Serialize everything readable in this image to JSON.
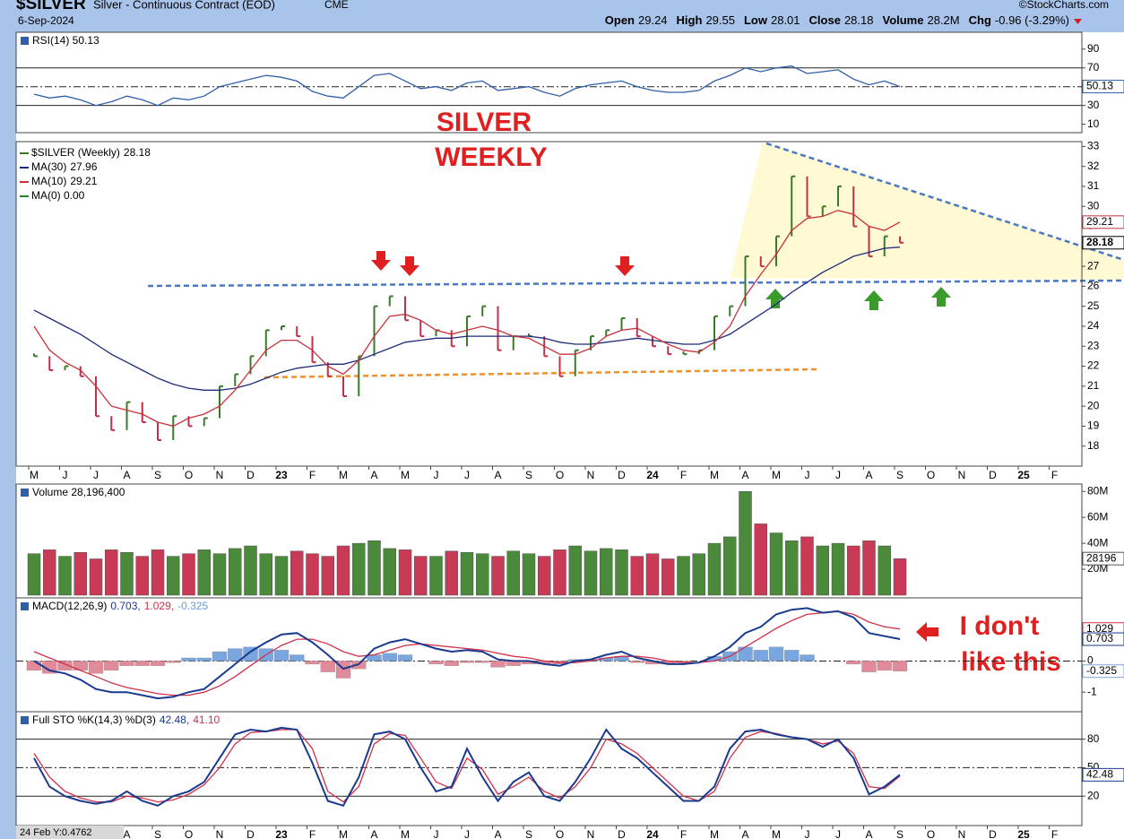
{
  "header": {
    "symbol": "$SILVER",
    "name": "Silver - Continuous Contract (EOD)",
    "exchange": "CME",
    "source": "©StockCharts.com",
    "date": "6-Sep-2024",
    "quote": [
      {
        "label": "Open",
        "value": 29.24
      },
      {
        "label": "High",
        "value": 29.55
      },
      {
        "label": "Low",
        "value": 28.01
      },
      {
        "label": "Close",
        "value": 28.18
      },
      {
        "label": "Volume",
        "value": "28.2M"
      },
      {
        "label": "Chg",
        "value": "-0.96 (-3.29%)"
      }
    ]
  },
  "annotations": {
    "title": [
      "SILVER",
      "WEEKLY"
    ],
    "comment": [
      "I don't",
      "like this"
    ]
  },
  "status": "24 Feb Y:0.4762",
  "chart_data": [
    {
      "type": "line",
      "title_parts": [
        {
          "text": "RSI(14) 50.13",
          "color": "#000000"
        }
      ],
      "ylim": [
        2,
        107
      ],
      "yticks": [
        10,
        30,
        50,
        70,
        90
      ],
      "reference_lines": [
        {
          "value": 70,
          "dash": false
        },
        {
          "value": 50,
          "dash": true
        },
        {
          "value": 30,
          "dash": false
        }
      ],
      "series": [
        {
          "color": "#2f5fa8",
          "style": "line",
          "tag": true,
          "values": [
            42,
            38,
            40,
            36,
            30,
            34,
            40,
            36,
            30,
            38,
            36,
            40,
            50,
            54,
            58,
            62,
            60,
            56,
            45,
            40,
            38,
            50,
            62,
            64,
            56,
            48,
            50,
            46,
            54,
            56,
            46,
            48,
            50,
            44,
            40,
            48,
            52,
            54,
            56,
            50,
            46,
            44,
            44,
            46,
            56,
            62,
            70,
            66,
            70,
            72,
            64,
            66,
            68,
            58,
            52,
            56,
            50.13,
            null,
            null,
            null,
            null,
            null,
            null,
            null,
            null,
            null,
            null,
            null
          ]
        }
      ]
    },
    {
      "type": "line",
      "categories": [
        "M",
        null,
        "J",
        null,
        "J",
        null,
        "A",
        null,
        "S",
        null,
        "O",
        null,
        "N",
        null,
        "D",
        null,
        "23",
        null,
        "F",
        null,
        "M",
        null,
        "A",
        null,
        "M",
        null,
        "J",
        null,
        "J",
        null,
        "A",
        null,
        "S",
        null,
        "O",
        null,
        "N",
        null,
        "D",
        null,
        "24",
        null,
        "F",
        null,
        "M",
        null,
        "A",
        null,
        "M",
        null,
        "J",
        null,
        "J",
        null,
        "A",
        null,
        "S",
        null,
        "O",
        null,
        "N",
        null,
        "D",
        null,
        "25",
        null,
        "F",
        null
      ],
      "ylim": [
        17,
        33.15
      ],
      "yticks": [
        18,
        19,
        20,
        21,
        22,
        23,
        24,
        25,
        26,
        27,
        28,
        29,
        30,
        31,
        32,
        33
      ],
      "series": [
        {
          "name": "$SILVER (Weekly)",
          "color": "#000000",
          "up_color": "#3a7a2a",
          "down_color": "#c0304a",
          "style": "bars",
          "tag": true,
          "values": [
            22.5,
            21.8,
            22.0,
            21.5,
            19.5,
            18.8,
            20.2,
            19.2,
            18.3,
            19.5,
            19.0,
            19.4,
            21.0,
            21.6,
            22.5,
            23.8,
            24.0,
            23.5,
            22.2,
            21.5,
            20.5,
            22.5,
            25.0,
            25.5,
            24.3,
            23.5,
            23.8,
            23.0,
            24.5,
            25.0,
            22.8,
            23.5,
            23.5,
            22.5,
            21.5,
            22.8,
            23.5,
            23.8,
            24.4,
            23.5,
            23.0,
            22.6,
            22.6,
            22.8,
            24.5,
            25.0,
            27.5,
            27.0,
            28.5,
            31.5,
            29.5,
            30.0,
            31.0,
            29.0,
            27.5,
            28.5,
            28.18,
            null,
            null,
            null,
            null,
            null,
            null,
            null,
            null,
            null,
            null,
            null
          ]
        },
        {
          "name": "MA(30)",
          "color": "#1f2a7a",
          "style": "line",
          "tag": false,
          "values": [
            24.8,
            24.4,
            24.0,
            23.6,
            23.1,
            22.6,
            22.2,
            21.8,
            21.4,
            21.1,
            20.9,
            20.8,
            20.8,
            20.9,
            21.1,
            21.4,
            21.7,
            21.9,
            22.0,
            22.1,
            22.1,
            22.3,
            22.6,
            22.9,
            23.2,
            23.3,
            23.4,
            23.4,
            23.5,
            23.5,
            23.5,
            23.5,
            23.5,
            23.4,
            23.2,
            23.1,
            23.1,
            23.2,
            23.3,
            23.4,
            23.3,
            23.2,
            23.1,
            23.1,
            23.3,
            23.6,
            24.1,
            24.6,
            25.1,
            25.7,
            26.2,
            26.7,
            27.1,
            27.5,
            27.7,
            27.9,
            27.96,
            null,
            null,
            null,
            null,
            null,
            null,
            null,
            null,
            null,
            null,
            null
          ]
        },
        {
          "name": "MA(10)",
          "color": "#c8323c",
          "style": "line",
          "tag": true,
          "values": [
            24.0,
            22.8,
            22.2,
            21.8,
            21.0,
            20.0,
            19.8,
            19.6,
            19.2,
            19.0,
            19.4,
            19.6,
            20.0,
            20.8,
            21.8,
            22.8,
            23.3,
            23.3,
            22.8,
            22.0,
            21.6,
            22.3,
            23.5,
            24.5,
            24.6,
            24.3,
            23.8,
            23.6,
            23.8,
            24.0,
            23.8,
            23.5,
            23.4,
            23.0,
            22.6,
            22.6,
            22.9,
            23.5,
            23.8,
            23.9,
            23.5,
            23.1,
            22.8,
            22.7,
            23.2,
            24.0,
            25.5,
            26.6,
            27.6,
            28.8,
            29.4,
            29.5,
            29.8,
            29.6,
            29.0,
            28.8,
            29.21,
            null,
            null,
            null,
            null,
            null,
            null,
            null,
            null,
            null,
            null,
            null
          ]
        }
      ],
      "extra_legend": {
        "text": "MA(0) 0.00",
        "color": "#2e7d32"
      }
    },
    {
      "type": "bar",
      "title_parts": [
        {
          "text": "Volume 28,196,400",
          "color": "#000000"
        }
      ],
      "ylim": [
        0,
        85
      ],
      "yticks": [
        {
          "value": 20,
          "label": "20M"
        },
        {
          "value": 40,
          "label": "40M"
        },
        {
          "value": 60,
          "label": "60M"
        },
        {
          "value": 80,
          "label": "80M"
        }
      ],
      "tag_label": "28196",
      "series": [
        {
          "color": "#000000",
          "up_color": "#4a8a3a",
          "down_color": "#c83a56",
          "style": "volume",
          "values": [
            32,
            35,
            30,
            33,
            28,
            35,
            33,
            30,
            35,
            30,
            32,
            35,
            32,
            36,
            38,
            32,
            30,
            34,
            32,
            30,
            38,
            40,
            42,
            36,
            35,
            30,
            30,
            34,
            33,
            32,
            30,
            34,
            32,
            30,
            35,
            38,
            34,
            36,
            35,
            30,
            32,
            28,
            30,
            32,
            40,
            45,
            80,
            55,
            48,
            42,
            45,
            38,
            40,
            38,
            42,
            38,
            28.1964,
            null,
            null,
            null,
            null,
            null,
            null,
            null,
            null,
            null,
            null,
            null
          ]
        }
      ]
    },
    {
      "type": "line",
      "title_parts": [
        {
          "text": "MACD(12,26,9)",
          "color": "#000000"
        },
        {
          "text": "0.703,",
          "color": "#1a3a8f"
        },
        {
          "text": "1.029,",
          "color": "#d0304a"
        },
        {
          "text": "-0.325",
          "color": "#6a9ae0"
        }
      ],
      "ylim": [
        -1.6,
        2
      ],
      "yticks": [
        -1,
        0,
        1
      ],
      "reference_lines": [
        {
          "value": 0,
          "dash": true
        }
      ],
      "series": [
        {
          "color": "#7aa6e0",
          "negative_color": "#e08a9a",
          "style": "histogram",
          "tag": true,
          "values": [
            -0.3,
            -0.4,
            -0.3,
            -0.3,
            -0.4,
            -0.3,
            -0.15,
            -0.15,
            -0.15,
            -0.05,
            0.1,
            0.1,
            0.3,
            0.4,
            0.45,
            0.4,
            0.35,
            0.2,
            -0.1,
            -0.35,
            -0.55,
            -0.25,
            0.2,
            0.25,
            0.2,
            0.0,
            -0.1,
            -0.15,
            -0.05,
            -0.05,
            -0.2,
            -0.15,
            -0.1,
            -0.1,
            -0.1,
            0.05,
            0.05,
            0.1,
            0.15,
            -0.05,
            -0.1,
            -0.1,
            -0.05,
            0.0,
            0.15,
            0.3,
            0.45,
            0.35,
            0.45,
            0.35,
            0.2,
            0.0,
            0.0,
            -0.1,
            -0.35,
            -0.3,
            -0.325,
            null,
            null,
            null,
            null,
            null,
            null,
            null,
            null,
            null,
            null,
            null
          ]
        },
        {
          "color": "#d0304a",
          "style": "line",
          "tag": true,
          "values": [
            0.3,
            0.1,
            -0.1,
            -0.3,
            -0.5,
            -0.7,
            -0.85,
            -0.95,
            -1.05,
            -1.1,
            -1.1,
            -1.0,
            -0.8,
            -0.5,
            -0.15,
            0.2,
            0.5,
            0.7,
            0.7,
            0.55,
            0.3,
            0.15,
            0.2,
            0.35,
            0.5,
            0.55,
            0.5,
            0.45,
            0.4,
            0.35,
            0.25,
            0.15,
            0.1,
            0.0,
            -0.05,
            -0.05,
            0.0,
            0.1,
            0.15,
            0.15,
            0.1,
            0.0,
            -0.05,
            -0.05,
            0.0,
            0.15,
            0.45,
            0.75,
            1.05,
            1.3,
            1.5,
            1.55,
            1.6,
            1.5,
            1.25,
            1.1,
            1.029,
            null,
            null,
            null,
            null,
            null,
            null,
            null,
            null,
            null,
            null,
            null
          ]
        },
        {
          "color": "#1a3a8f",
          "style": "thick",
          "tag": true,
          "values": [
            0.0,
            -0.3,
            -0.4,
            -0.6,
            -0.9,
            -1.0,
            -1.0,
            -1.1,
            -1.2,
            -1.15,
            -1.0,
            -0.9,
            -0.5,
            -0.1,
            0.3,
            0.6,
            0.85,
            0.9,
            0.6,
            0.2,
            -0.25,
            -0.1,
            0.4,
            0.6,
            0.7,
            0.55,
            0.4,
            0.3,
            0.35,
            0.3,
            0.05,
            0.0,
            0.0,
            -0.1,
            -0.15,
            0.0,
            0.05,
            0.2,
            0.3,
            0.1,
            0.0,
            -0.1,
            -0.1,
            -0.05,
            0.15,
            0.45,
            0.9,
            1.1,
            1.5,
            1.65,
            1.7,
            1.55,
            1.6,
            1.4,
            0.9,
            0.8,
            0.703,
            null,
            null,
            null,
            null,
            null,
            null,
            null,
            null,
            null,
            null,
            null
          ]
        }
      ]
    },
    {
      "type": "line",
      "title_parts": [
        {
          "text": "Full STO %K(14,3) %D(3)",
          "color": "#000000"
        },
        {
          "text": "42.48,",
          "color": "#1a3a8f"
        },
        {
          "text": "41.10",
          "color": "#d0304a"
        }
      ],
      "categories": [
        "M",
        null,
        "J",
        null,
        "J",
        null,
        "A",
        null,
        "S",
        null,
        "O",
        null,
        "N",
        null,
        "D",
        null,
        "23",
        null,
        "F",
        null,
        "M",
        null,
        "A",
        null,
        "M",
        null,
        "J",
        null,
        "J",
        null,
        "A",
        null,
        "S",
        null,
        "O",
        null,
        "N",
        null,
        "D",
        null,
        "24",
        null,
        "F",
        null,
        "M",
        null,
        "A",
        null,
        "M",
        null,
        "J",
        null,
        "J",
        null,
        "A",
        null,
        "S",
        null,
        "O",
        null,
        "N",
        null,
        "D",
        null,
        "25",
        null,
        "F",
        null
      ],
      "ylim": [
        -10,
        107
      ],
      "yticks": [
        20,
        50,
        80
      ],
      "reference_lines": [
        {
          "value": 80,
          "dash": false
        },
        {
          "value": 50,
          "dash": true
        },
        {
          "value": 20,
          "dash": false
        }
      ],
      "series": [
        {
          "color": "#d0304a",
          "style": "line",
          "tag": false,
          "values": [
            65,
            40,
            25,
            18,
            14,
            14,
            20,
            18,
            14,
            16,
            22,
            32,
            50,
            75,
            87,
            88,
            90,
            90,
            70,
            25,
            14,
            30,
            75,
            86,
            84,
            60,
            35,
            28,
            60,
            48,
            22,
            30,
            40,
            25,
            18,
            30,
            50,
            80,
            75,
            65,
            50,
            35,
            20,
            15,
            25,
            60,
            82,
            88,
            86,
            82,
            80,
            75,
            78,
            65,
            30,
            28,
            41.1,
            null,
            null,
            null,
            null,
            null,
            null,
            null,
            null,
            null,
            null,
            null
          ]
        },
        {
          "color": "#1a3a8f",
          "style": "thick",
          "tag": true,
          "values": [
            60,
            30,
            20,
            15,
            12,
            15,
            25,
            15,
            10,
            20,
            25,
            35,
            60,
            85,
            90,
            88,
            92,
            90,
            55,
            15,
            10,
            40,
            85,
            88,
            80,
            50,
            25,
            30,
            70,
            40,
            15,
            35,
            45,
            20,
            15,
            35,
            60,
            90,
            70,
            60,
            45,
            30,
            15,
            15,
            30,
            70,
            88,
            90,
            85,
            82,
            80,
            72,
            80,
            60,
            22,
            30,
            42.48,
            null,
            null,
            null,
            null,
            null,
            null,
            null,
            null,
            null,
            null,
            null
          ]
        }
      ]
    }
  ]
}
